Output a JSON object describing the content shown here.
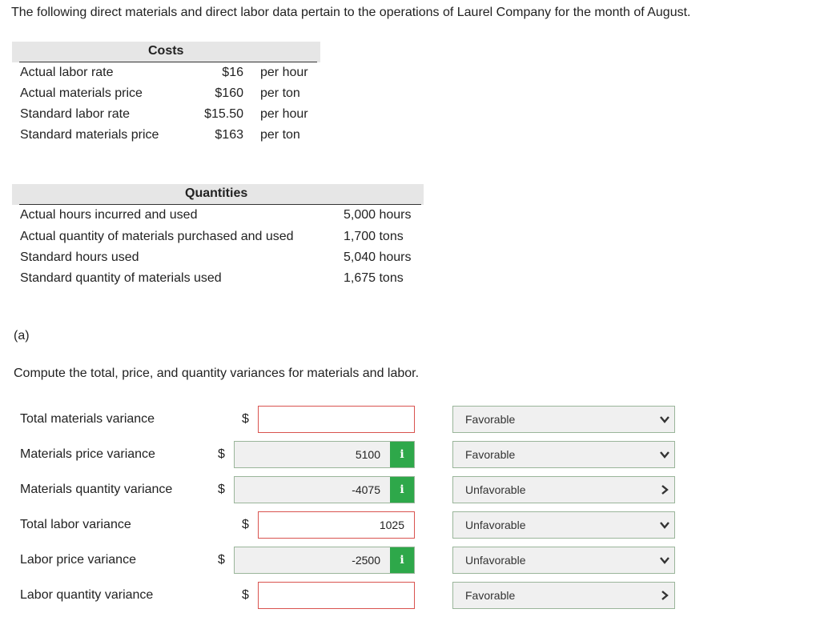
{
  "intro": "The following direct materials and direct labor data pertain to the operations of Laurel Company for the month of August.",
  "costs": {
    "header": "Costs",
    "rows": [
      {
        "label": "Actual labor rate",
        "value": "$16",
        "unit": "per hour"
      },
      {
        "label": "Actual materials price",
        "value": "$160",
        "unit": "per ton"
      },
      {
        "label": "Standard labor rate",
        "value": "$15.50",
        "unit": "per hour"
      },
      {
        "label": "Standard materials price",
        "value": "$163",
        "unit": "per ton"
      }
    ]
  },
  "quantities": {
    "header": "Quantities",
    "rows": [
      {
        "label": "Actual hours incurred and used",
        "value": "5,000 hours"
      },
      {
        "label": "Actual quantity of materials purchased and used",
        "value": "1,700 tons"
      },
      {
        "label": "Standard hours used",
        "value": "5,040 hours"
      },
      {
        "label": "Standard quantity of materials used",
        "value": "1,675 tons"
      }
    ]
  },
  "part_label": "(a)",
  "instruction": "Compute the total, price, and quantity variances for materials and labor.",
  "currency_symbol": "$",
  "info_glyph": "i",
  "variances": [
    {
      "label": "Total materials variance",
      "value": "",
      "selection": "Favorable"
    },
    {
      "label": "Materials price variance",
      "value": "5100",
      "selection": "Favorable"
    },
    {
      "label": "Materials quantity variance",
      "value": "-4075",
      "selection": "Unfavorable"
    },
    {
      "label": "Total labor variance",
      "value": "1025",
      "selection": "Unfavorable"
    },
    {
      "label": "Labor price variance",
      "value": "-2500",
      "selection": "Unfavorable"
    },
    {
      "label": "Labor quantity variance",
      "value": "",
      "selection": "Favorable"
    }
  ],
  "colors": {
    "empty_border": "#d9534f",
    "filled_border": "#9ab59a",
    "info_button": "#2ea84a",
    "header_bg": "#e6e6e6"
  },
  "icons": {
    "info": "info-icon",
    "dropdown": "chevron-down-icon",
    "collapsed": "chevron-right-icon"
  }
}
